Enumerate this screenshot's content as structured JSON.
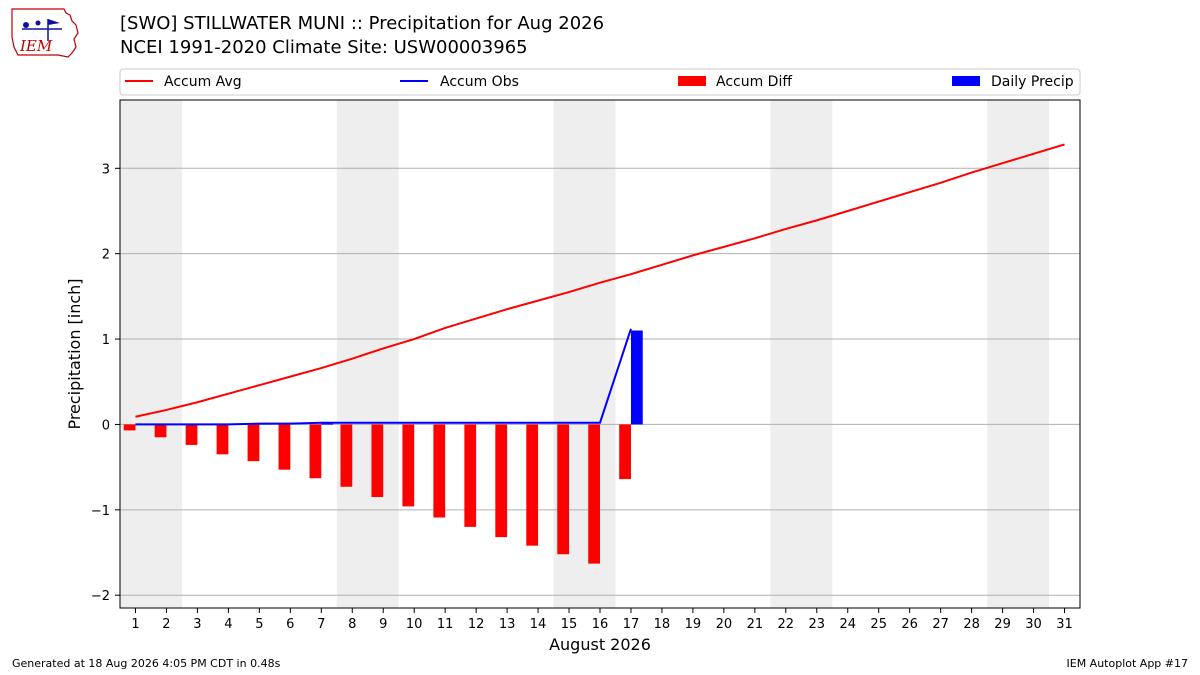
{
  "header": {
    "title_line1": "[SWO] STILLWATER MUNI :: Precipitation for Aug 2026",
    "title_line2": "NCEI 1991-2020 Climate Site: USW00003965",
    "logo_text": "IEM"
  },
  "footer": {
    "left": "Generated at 18 Aug 2026 4:05 PM CDT in 0.48s",
    "right": "IEM Autoplot App #17"
  },
  "colors": {
    "accum_avg": "#ff0000",
    "accum_obs": "#0000ff",
    "accum_diff": "#ff0000",
    "daily_precip": "#0000ff",
    "weekend_shade": "#eeeeee",
    "grid": "#b0b0b0"
  },
  "chart_data": {
    "type": "line",
    "xlabel": "August 2026",
    "ylabel": "Precipitation [inch]",
    "xlim": [
      0.5,
      31.5
    ],
    "ylim": [
      -2.15,
      3.8
    ],
    "yticks": [
      -2,
      -1,
      0,
      1,
      2,
      3
    ],
    "ytick_labels": [
      "−2",
      "−1",
      "0",
      "1",
      "2",
      "3"
    ],
    "xticks": [
      1,
      2,
      3,
      4,
      5,
      6,
      7,
      8,
      9,
      10,
      11,
      12,
      13,
      14,
      15,
      16,
      17,
      18,
      19,
      20,
      21,
      22,
      23,
      24,
      25,
      26,
      27,
      28,
      29,
      30,
      31
    ],
    "grid": "horizontal",
    "legend_position": "top, above plot",
    "weekend_bands": [
      [
        0.5,
        2.5
      ],
      [
        7.5,
        9.5
      ],
      [
        14.5,
        16.5
      ],
      [
        21.5,
        23.5
      ],
      [
        28.5,
        30.5
      ]
    ],
    "legend": [
      {
        "label": "Accum Avg",
        "kind": "line",
        "color": "#ff0000"
      },
      {
        "label": "Accum Obs",
        "kind": "line",
        "color": "#0000ff"
      },
      {
        "label": "Accum Diff",
        "kind": "bar",
        "color": "#ff0000"
      },
      {
        "label": "Daily Precip",
        "kind": "bar",
        "color": "#0000ff"
      }
    ],
    "series": [
      {
        "name": "Accum Avg",
        "type": "line",
        "x": [
          1,
          2,
          3,
          4,
          5,
          6,
          7,
          8,
          9,
          10,
          11,
          12,
          13,
          14,
          15,
          16,
          17,
          18,
          19,
          20,
          21,
          22,
          23,
          24,
          25,
          26,
          27,
          28,
          29,
          30,
          31
        ],
        "values": [
          0.09,
          0.17,
          0.26,
          0.36,
          0.46,
          0.56,
          0.66,
          0.77,
          0.89,
          1.0,
          1.13,
          1.24,
          1.35,
          1.45,
          1.55,
          1.66,
          1.76,
          1.87,
          1.98,
          2.08,
          2.18,
          2.29,
          2.39,
          2.5,
          2.61,
          2.72,
          2.83,
          2.95,
          3.06,
          3.17,
          3.28
        ]
      },
      {
        "name": "Accum Obs",
        "type": "line",
        "x": [
          1,
          2,
          3,
          4,
          5,
          6,
          7,
          8,
          9,
          10,
          11,
          12,
          13,
          14,
          15,
          16,
          17
        ],
        "values": [
          0.0,
          0.0,
          0.0,
          0.0,
          0.01,
          0.01,
          0.02,
          0.02,
          0.02,
          0.02,
          0.02,
          0.02,
          0.02,
          0.02,
          0.02,
          0.02,
          1.12
        ]
      },
      {
        "name": "Accum Diff",
        "type": "bar",
        "x": [
          1,
          2,
          3,
          4,
          5,
          6,
          7,
          8,
          9,
          10,
          11,
          12,
          13,
          14,
          15,
          16,
          17
        ],
        "values": [
          -0.07,
          -0.15,
          -0.24,
          -0.35,
          -0.43,
          -0.53,
          -0.63,
          -0.73,
          -0.85,
          -0.96,
          -1.09,
          -1.2,
          -1.32,
          -1.42,
          -1.52,
          -1.63,
          -0.64
        ]
      },
      {
        "name": "Daily Precip",
        "type": "bar",
        "x": [
          1,
          2,
          3,
          4,
          5,
          6,
          7,
          8,
          9,
          10,
          11,
          12,
          13,
          14,
          15,
          16,
          17
        ],
        "values": [
          0,
          0,
          0,
          0,
          0.01,
          0,
          0.01,
          0,
          0,
          0,
          0,
          0,
          0,
          0,
          0,
          0,
          1.1
        ]
      }
    ]
  }
}
